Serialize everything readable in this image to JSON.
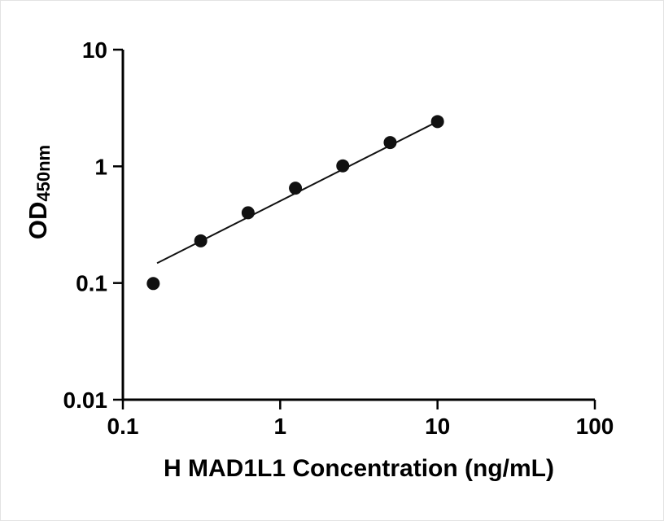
{
  "chart_data": {
    "type": "scatter",
    "title": "",
    "xlabel": "H MAD1L1 Concentration (ng/mL)",
    "ylabel": "OD",
    "ylabel_sub": "450nm",
    "xscale": "log",
    "yscale": "log",
    "xlim": [
      0.1,
      100
    ],
    "ylim": [
      0.01,
      10
    ],
    "xticks": [
      0.1,
      1,
      10,
      100
    ],
    "xtick_labels": [
      "0.1",
      "1",
      "10",
      "100"
    ],
    "yticks": [
      0.01,
      0.1,
      1,
      10
    ],
    "ytick_labels": [
      "0.01",
      "0.1",
      "1",
      "10"
    ],
    "legend": null,
    "grid": false,
    "series": [
      {
        "name": "standard-curve-points",
        "x": [
          0.156,
          0.3125,
          0.625,
          1.25,
          2.5,
          5,
          10
        ],
        "y": [
          0.099,
          0.23,
          0.4,
          0.65,
          1.01,
          1.6,
          2.42
        ]
      }
    ],
    "fit_line": {
      "x1": 0.165,
      "y1": 0.148,
      "x2": 10,
      "y2": 2.42
    },
    "colors": {
      "point": "#111111",
      "line": "#111111",
      "axis": "#000000",
      "background": "#ffffff"
    }
  }
}
